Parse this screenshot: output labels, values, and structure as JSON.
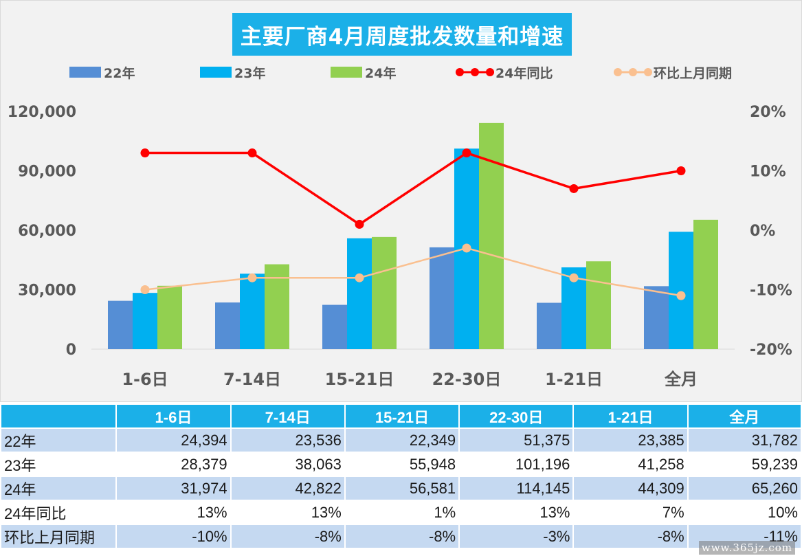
{
  "chart_data": {
    "type": "bar",
    "title": "主要厂商4月周度批发数量和增速",
    "categories": [
      "1-6日",
      "7-14日",
      "15-21日",
      "22-30日",
      "1-21日",
      "全月"
    ],
    "series": [
      {
        "name": "22年",
        "kind": "bar",
        "color": "#558ed5",
        "values": [
          24394,
          23536,
          22349,
          51375,
          23385,
          31782
        ]
      },
      {
        "name": "23年",
        "kind": "bar",
        "color": "#00b0f0",
        "values": [
          28379,
          38063,
          55948,
          101196,
          41258,
          59239
        ]
      },
      {
        "name": "24年",
        "kind": "bar",
        "color": "#92d050",
        "values": [
          31974,
          42822,
          56581,
          114145,
          44309,
          65260
        ]
      },
      {
        "name": "24年同比",
        "kind": "line",
        "axis": "right",
        "color": "#ff0000",
        "values": [
          13,
          13,
          1,
          13,
          7,
          10
        ]
      },
      {
        "name": "环比上月同期",
        "kind": "line",
        "axis": "right",
        "color": "#fac090",
        "values": [
          -10,
          -8,
          -8,
          -3,
          -8,
          -11
        ]
      }
    ],
    "left_axis": {
      "ylim": [
        0,
        120000
      ],
      "ticks": [
        "0",
        "30,000",
        "60,000",
        "90,000",
        "120,000"
      ]
    },
    "right_axis": {
      "ylim": [
        -20,
        20
      ],
      "ticks": [
        "-20%",
        "-10%",
        "0%",
        "10%",
        "20%"
      ]
    },
    "grid": false,
    "legend_position": "top"
  },
  "table": {
    "header": [
      "",
      "1-6日",
      "7-14日",
      "15-21日",
      "22-30日",
      "1-21日",
      "全月"
    ],
    "rows": [
      {
        "label": "22年",
        "cells": [
          "24,394",
          "23,536",
          "22,349",
          "51,375",
          "23,385",
          "31,782"
        ]
      },
      {
        "label": "23年",
        "cells": [
          "28,379",
          "38,063",
          "55,948",
          "101,196",
          "41,258",
          "59,239"
        ]
      },
      {
        "label": "24年",
        "cells": [
          "31,974",
          "42,822",
          "56,581",
          "114,145",
          "44,309",
          "65,260"
        ]
      },
      {
        "label": "24年同比",
        "cells": [
          "13%",
          "13%",
          "1%",
          "13%",
          "7%",
          "10%"
        ]
      },
      {
        "label": "环比上月同期",
        "cells": [
          "-10%",
          "-8%",
          "-8%",
          "-3%",
          "-8%",
          "-11%"
        ]
      }
    ]
  },
  "watermark": "www.365jz.com"
}
